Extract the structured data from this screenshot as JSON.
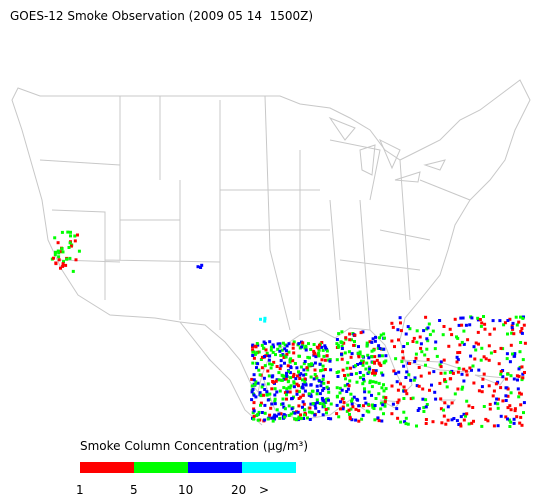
{
  "title": "GOES-12 Smoke Observation (2009 05 14  1500Z)",
  "legend": {
    "title": "Smoke Column Concentration (μg/m³)",
    "colors": [
      "#ff0000",
      "#00ff00",
      "#0000ff",
      "#00ffff"
    ],
    "labels": [
      "1",
      "5",
      "10",
      "20",
      ">"
    ]
  }
}
